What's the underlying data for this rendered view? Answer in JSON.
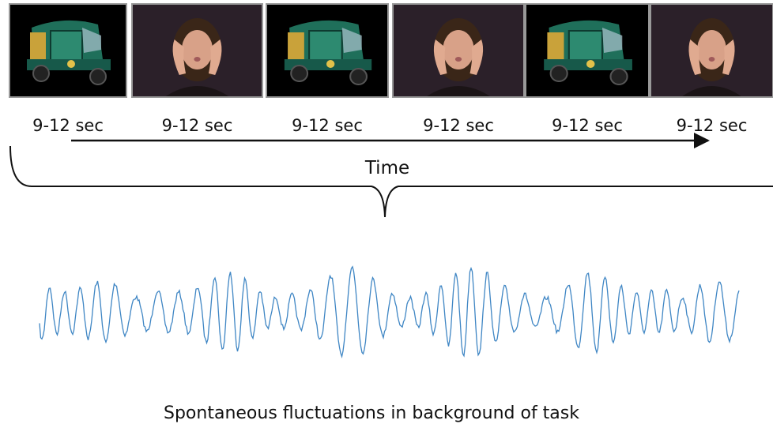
{
  "timeline": {
    "durations": [
      "9-12 sec",
      "9-12 sec",
      "9-12 sec",
      "9-12 sec",
      "9-12 sec",
      "9-12 sec"
    ],
    "axis_label": "Time"
  },
  "caption": "Spontaneous fluctuations in background of task"
}
